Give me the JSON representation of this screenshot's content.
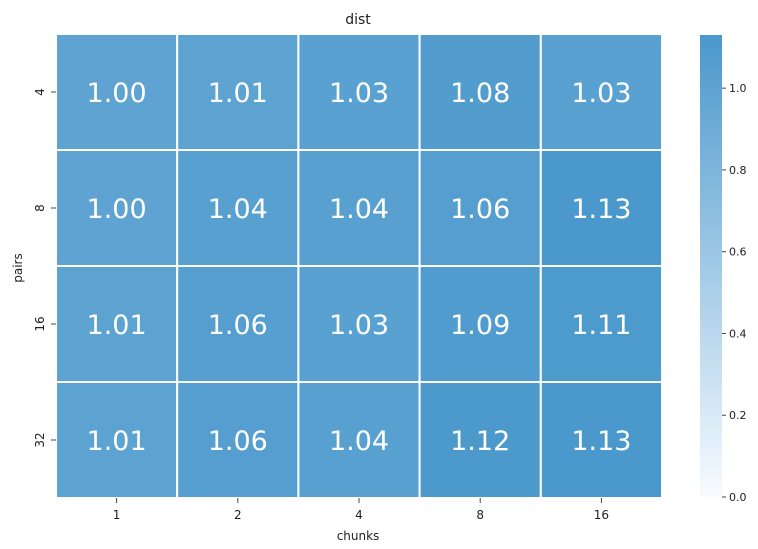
{
  "chart_data": {
    "type": "heatmap",
    "title": "dist",
    "xlabel": "chunks",
    "ylabel": "pairs",
    "x_categories": [
      "1",
      "2",
      "4",
      "8",
      "16"
    ],
    "y_categories": [
      "4",
      "8",
      "16",
      "32"
    ],
    "values": [
      [
        1.0,
        1.01,
        1.03,
        1.08,
        1.03
      ],
      [
        1.0,
        1.04,
        1.04,
        1.06,
        1.13
      ],
      [
        1.01,
        1.06,
        1.03,
        1.09,
        1.11
      ],
      [
        1.01,
        1.06,
        1.04,
        1.12,
        1.13
      ]
    ],
    "value_format_decimals": 2,
    "colorbar": {
      "range": [
        0.0,
        1.13
      ],
      "ticks": [
        0.0,
        0.2,
        0.4,
        0.6,
        0.8,
        1.0
      ],
      "tick_labels": [
        "0.0",
        "0.2",
        "0.4",
        "0.6",
        "0.8",
        "1.0"
      ],
      "color_low": "#f7fbff",
      "color_high": "#4a98cc"
    },
    "cell_text_color": "#ffffff",
    "grid_line_color": "#ffffff"
  }
}
